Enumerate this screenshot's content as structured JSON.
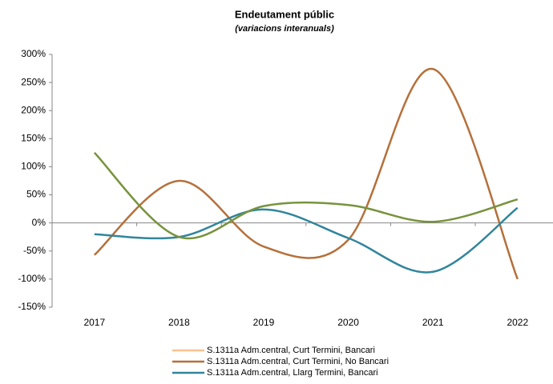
{
  "chart_data": {
    "type": "line",
    "title": "Endeutament públic",
    "subtitle": "(variacions interanuals)",
    "categories": [
      "2017",
      "2018",
      "2019",
      "2020",
      "2021",
      "2022"
    ],
    "series": [
      {
        "name": "S.1311a Adm.central, Curt Termini, Bancari",
        "color": "#fac090",
        "values": [
          null,
          null,
          null,
          null,
          null,
          null
        ]
      },
      {
        "name": "S.1311a Adm.central, Curt Termini, No Bancari",
        "color": "#b5703a",
        "values": [
          -57,
          75,
          -42,
          -30,
          274,
          -100
        ]
      },
      {
        "name": "S.1311a Adm.central, Llarg Termini, Bancari",
        "color": "#31859c",
        "values": [
          -20,
          -25,
          24,
          -27,
          -87,
          27
        ]
      },
      {
        "color": "#77933c",
        "values": [
          125,
          -25,
          30,
          32,
          2,
          42
        ]
      }
    ],
    "ylim": [
      -150,
      300
    ],
    "yticks": [
      {
        "value": -150,
        "label": "-150%"
      },
      {
        "value": -100,
        "label": "-100%"
      },
      {
        "value": -50,
        "label": "-50%"
      },
      {
        "value": 0,
        "label": "0%"
      },
      {
        "value": 50,
        "label": "50%"
      },
      {
        "value": 100,
        "label": "100%"
      },
      {
        "value": 150,
        "label": "150%"
      },
      {
        "value": 200,
        "label": "200%"
      },
      {
        "value": 250,
        "label": "250%"
      },
      {
        "value": 300,
        "label": "300%"
      }
    ],
    "smooth": true
  }
}
